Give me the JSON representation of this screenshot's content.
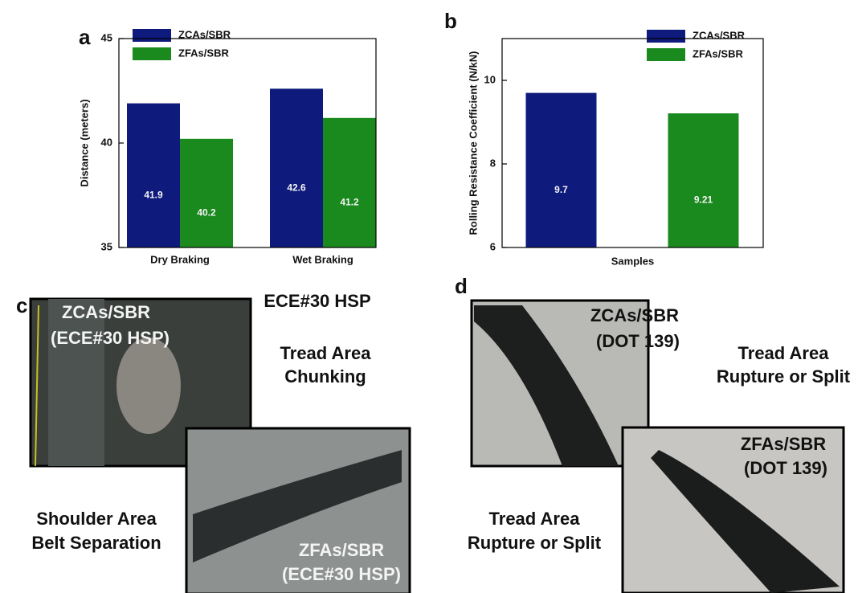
{
  "chart_data": [
    {
      "type": "bar",
      "panel": "a",
      "ylabel": "Distance (meters)",
      "categories": [
        "Dry Braking",
        "Wet Braking"
      ],
      "series": [
        {
          "name": "ZCAs/SBR",
          "color": "#0e1a7c",
          "values": [
            41.9,
            42.6
          ]
        },
        {
          "name": "ZFAs/SBR",
          "color": "#1b8a1e",
          "values": [
            40.2,
            41.2
          ]
        }
      ],
      "ylim": [
        35,
        45
      ],
      "yticks": [
        35,
        40,
        45
      ],
      "grid": false,
      "data_labels": true,
      "legend": "upper-left"
    },
    {
      "type": "bar",
      "panel": "b",
      "ylabel": "Rolling Resistance Coefficient (N/kN)",
      "xlabel": "Samples",
      "categories": [
        null
      ],
      "series": [
        {
          "name": "ZCAs/SBR",
          "color": "#0e1a7c",
          "values": [
            9.7
          ]
        },
        {
          "name": "ZFAs/SBR",
          "color": "#1b8a1e",
          "values": [
            9.21
          ]
        }
      ],
      "ylim": [
        6,
        11
      ],
      "yticks": [
        6,
        8,
        10
      ],
      "grid": false,
      "data_labels": true,
      "legend": "upper-right"
    }
  ],
  "panels": {
    "c": {
      "label": "c",
      "header": "ECE#30 HSP",
      "photo_1": [
        "ZCAs/SBR",
        "(ECE#30 HSP)"
      ],
      "failure_1": [
        "Tread Area",
        "Chunking"
      ],
      "photo_2": [
        "ZFAs/SBR",
        "(ECE#30 HSP)"
      ],
      "failure_2": [
        "Shoulder Area",
        "Belt Separation"
      ]
    },
    "d": {
      "label": "d",
      "photo_1": [
        "ZCAs/SBR",
        "(DOT 139)"
      ],
      "failure_1": [
        "Tread Area",
        "Rupture or Split"
      ],
      "photo_2": [
        "ZFAs/SBR",
        "(DOT 139)"
      ],
      "failure_2": [
        "Tread Area",
        "Rupture or Split"
      ]
    }
  }
}
